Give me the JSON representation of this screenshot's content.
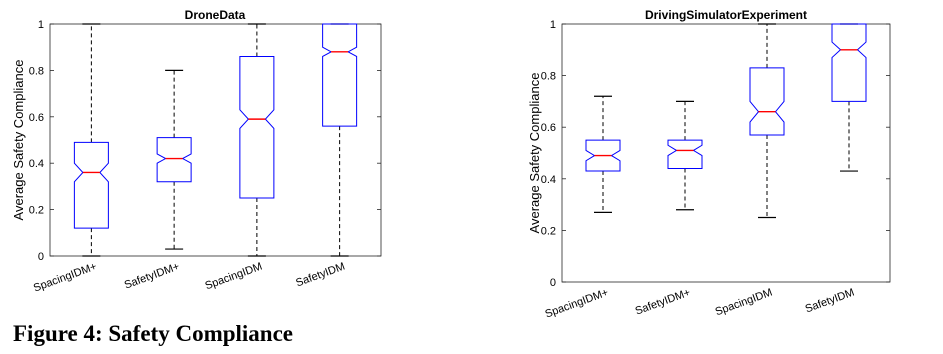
{
  "caption": "Figure 4: Safety Compliance",
  "chart_data": [
    {
      "type": "boxplot",
      "notched": true,
      "title": "DroneData",
      "xlabel": "",
      "ylabel": "Average Safety Compliance",
      "ylim": [
        0,
        1
      ],
      "yticks": [
        0,
        0.2,
        0.4,
        0.6,
        0.8,
        1
      ],
      "ytick_labels": [
        "0",
        "0.2",
        "0.4",
        "0.6",
        "0.8",
        "1"
      ],
      "categories": [
        "SpacingIDM+",
        "SafetyIDM+",
        "SpacingIDM",
        "SafetyIDM"
      ],
      "boxes": [
        {
          "whisker_low": 0.0,
          "q1": 0.12,
          "median": 0.36,
          "q3": 0.49,
          "whisker_high": 1.0,
          "notch_low": 0.32,
          "notch_high": 0.4
        },
        {
          "whisker_low": 0.03,
          "q1": 0.32,
          "median": 0.42,
          "q3": 0.51,
          "whisker_high": 0.8,
          "notch_low": 0.4,
          "notch_high": 0.44
        },
        {
          "whisker_low": 0.0,
          "q1": 0.25,
          "median": 0.59,
          "q3": 0.86,
          "whisker_high": 1.0,
          "notch_low": 0.55,
          "notch_high": 0.63
        },
        {
          "whisker_low": 0.0,
          "q1": 0.56,
          "median": 0.88,
          "q3": 1.0,
          "whisker_high": 1.0,
          "notch_low": 0.86,
          "notch_high": 0.9
        }
      ],
      "colors": {
        "box": "#0000ff",
        "median": "#ff0000",
        "whisker": "#000000"
      }
    },
    {
      "type": "boxplot",
      "notched": true,
      "title": "DrivingSimulatorExperiment",
      "xlabel": "",
      "ylabel": "Average Safety Compliance",
      "ylim": [
        0,
        1
      ],
      "yticks": [
        0,
        0.2,
        0.4,
        0.6,
        0.8,
        1
      ],
      "ytick_labels": [
        "0",
        "0.2",
        "0.4",
        "0.6",
        "0.8",
        "1"
      ],
      "categories": [
        "SpacingIDM+",
        "SafetyIDM+",
        "SpacingIDM",
        "SafetyIDM"
      ],
      "boxes": [
        {
          "whisker_low": 0.27,
          "q1": 0.43,
          "median": 0.49,
          "q3": 0.55,
          "whisker_high": 0.72,
          "notch_low": 0.47,
          "notch_high": 0.51
        },
        {
          "whisker_low": 0.28,
          "q1": 0.44,
          "median": 0.51,
          "q3": 0.55,
          "whisker_high": 0.7,
          "notch_low": 0.49,
          "notch_high": 0.53
        },
        {
          "whisker_low": 0.25,
          "q1": 0.57,
          "median": 0.66,
          "q3": 0.83,
          "whisker_high": 1.0,
          "notch_low": 0.62,
          "notch_high": 0.7
        },
        {
          "whisker_low": 0.43,
          "q1": 0.7,
          "median": 0.9,
          "q3": 1.0,
          "whisker_high": 1.0,
          "notch_low": 0.87,
          "notch_high": 0.93
        }
      ],
      "colors": {
        "box": "#0000ff",
        "median": "#ff0000",
        "whisker": "#000000"
      }
    }
  ]
}
